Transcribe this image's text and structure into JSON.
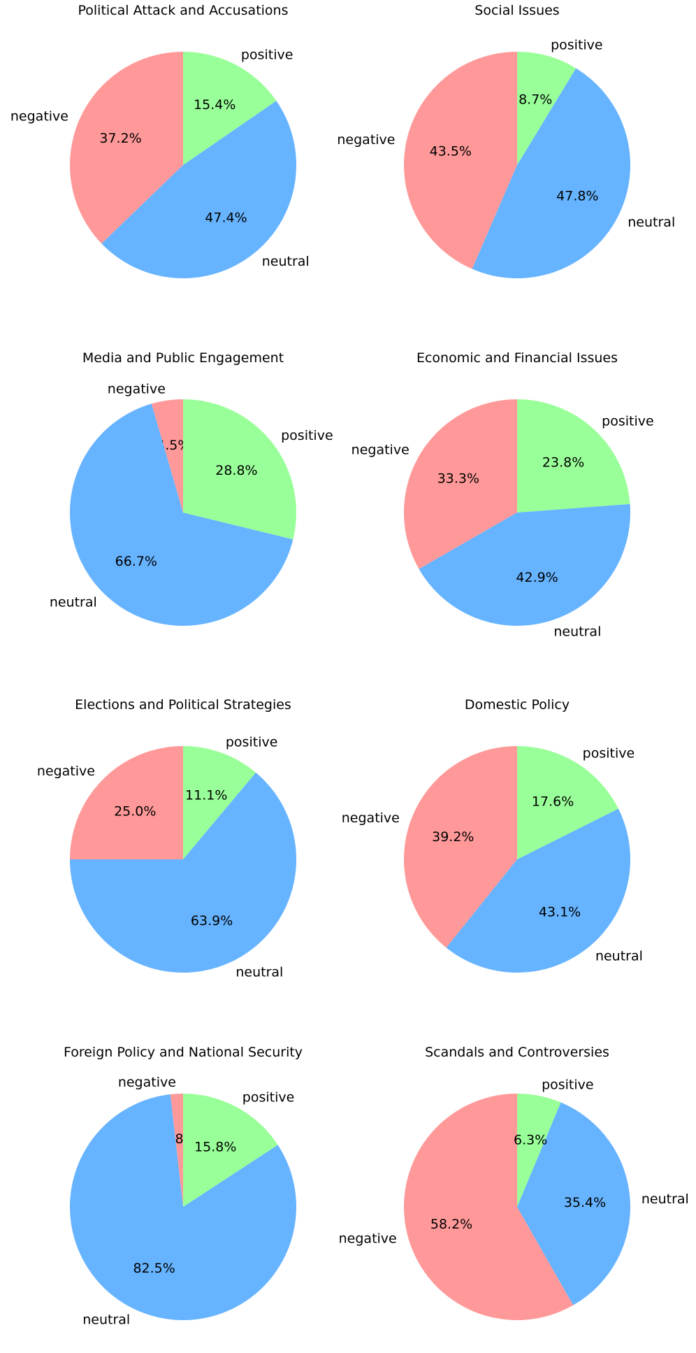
{
  "colors": {
    "negative": "#ff9999",
    "neutral": "#66b3ff",
    "positive": "#99ff99"
  },
  "chart_data": [
    {
      "type": "pie",
      "title": "Political Attack and Accusations",
      "slices": [
        {
          "label": "negative",
          "value": 37.2,
          "pct_label": "37.2%"
        },
        {
          "label": "neutral",
          "value": 47.4,
          "pct_label": "47.4%"
        },
        {
          "label": "positive",
          "value": 15.4,
          "pct_label": "15.4%"
        }
      ]
    },
    {
      "type": "pie",
      "title": "Social Issues",
      "slices": [
        {
          "label": "negative",
          "value": 43.5,
          "pct_label": "43.5%"
        },
        {
          "label": "neutral",
          "value": 47.8,
          "pct_label": "47.8%"
        },
        {
          "label": "positive",
          "value": 8.7,
          "pct_label": "8.7%"
        }
      ]
    },
    {
      "type": "pie",
      "title": "Media and Public Engagement",
      "slices": [
        {
          "label": "negative",
          "value": 4.5,
          "pct_label": "4.5%"
        },
        {
          "label": "neutral",
          "value": 66.7,
          "pct_label": "66.7%"
        },
        {
          "label": "positive",
          "value": 28.8,
          "pct_label": "28.8%"
        }
      ]
    },
    {
      "type": "pie",
      "title": "Economic and Financial Issues",
      "slices": [
        {
          "label": "negative",
          "value": 33.3,
          "pct_label": "33.3%"
        },
        {
          "label": "neutral",
          "value": 42.9,
          "pct_label": "42.9%"
        },
        {
          "label": "positive",
          "value": 23.8,
          "pct_label": "23.8%"
        }
      ]
    },
    {
      "type": "pie",
      "title": "Elections and Political Strategies",
      "slices": [
        {
          "label": "negative",
          "value": 25.0,
          "pct_label": "25.0%"
        },
        {
          "label": "neutral",
          "value": 63.9,
          "pct_label": "63.9%"
        },
        {
          "label": "positive",
          "value": 11.1,
          "pct_label": "11.1%"
        }
      ]
    },
    {
      "type": "pie",
      "title": "Domestic Policy",
      "slices": [
        {
          "label": "negative",
          "value": 39.2,
          "pct_label": "39.2%"
        },
        {
          "label": "neutral",
          "value": 43.1,
          "pct_label": "43.1%"
        },
        {
          "label": "positive",
          "value": 17.6,
          "pct_label": "17.6%"
        }
      ]
    },
    {
      "type": "pie",
      "title": "Foreign Policy and National Security",
      "slices": [
        {
          "label": "negative",
          "value": 1.8,
          "pct_label": "1.8%"
        },
        {
          "label": "neutral",
          "value": 82.5,
          "pct_label": "82.5%"
        },
        {
          "label": "positive",
          "value": 15.8,
          "pct_label": "15.8%"
        }
      ]
    },
    {
      "type": "pie",
      "title": "Scandals and Controversies",
      "slices": [
        {
          "label": "negative",
          "value": 58.2,
          "pct_label": "58.2%"
        },
        {
          "label": "neutral",
          "value": 35.4,
          "pct_label": "35.4%"
        },
        {
          "label": "positive",
          "value": 6.3,
          "pct_label": "6.3%"
        }
      ]
    }
  ]
}
